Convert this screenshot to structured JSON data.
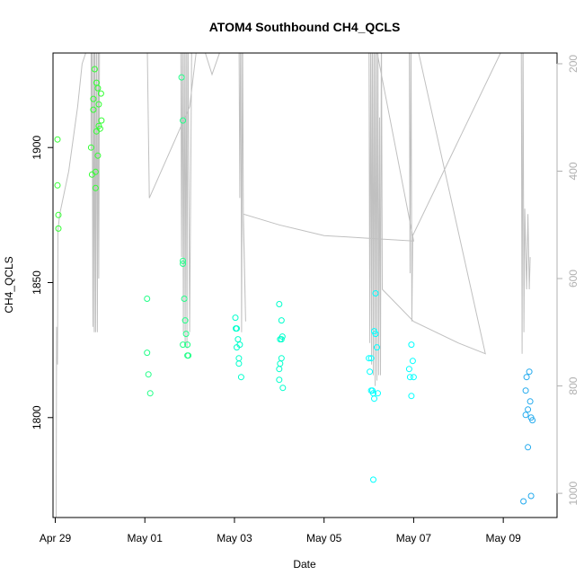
{
  "chart_data": {
    "type": "scatter",
    "title": "ATOM4 Southbound CH4_QCLS",
    "xlabel": "Date",
    "ylabel": "CH4_QCLS",
    "xlim": [
      -0.05,
      11.2
    ],
    "ylim": [
      1763,
      1935
    ],
    "x_ticks": [
      {
        "value": 0,
        "label": "Apr 29"
      },
      {
        "value": 2,
        "label": "May 01"
      },
      {
        "value": 4,
        "label": "May 03"
      },
      {
        "value": 6,
        "label": "May 05"
      },
      {
        "value": 8,
        "label": "May 07"
      },
      {
        "value": 10,
        "label": "May 09"
      }
    ],
    "y_ticks": [
      {
        "value": 1800,
        "label": "1800"
      },
      {
        "value": 1850,
        "label": "1850"
      },
      {
        "value": 1900,
        "label": "1900"
      }
    ],
    "y2lim": [
      1045,
      180
    ],
    "y2_ticks": [
      {
        "value": 200,
        "label": "200"
      },
      {
        "value": 400,
        "label": "400"
      },
      {
        "value": 600,
        "label": "600"
      },
      {
        "value": 800,
        "label": "800"
      },
      {
        "value": 1000,
        "label": "1000"
      }
    ],
    "grey_line_color": "#c0c0c0",
    "point_colors": [
      "#33ff33",
      "#22ff88",
      "#00ffcc",
      "#00ffff",
      "#22aaee"
    ],
    "pressure_trace": [
      [
        0.02,
        1045
      ],
      [
        0.03,
        690
      ],
      [
        0.05,
        760
      ],
      [
        0.06,
        510
      ],
      [
        0.1,
        480
      ],
      [
        0.3,
        400
      ],
      [
        0.5,
        280
      ],
      [
        0.6,
        200
      ],
      [
        0.8,
        150
      ],
      [
        0.8,
        360
      ],
      [
        0.82,
        100
      ],
      [
        0.84,
        690
      ],
      [
        0.86,
        100
      ],
      [
        0.87,
        700
      ],
      [
        0.88,
        100
      ],
      [
        0.9,
        700
      ],
      [
        0.92,
        100
      ],
      [
        0.94,
        700
      ],
      [
        0.96,
        100
      ],
      [
        0.97,
        600
      ],
      [
        0.99,
        100
      ],
      [
        1.1,
        60
      ],
      [
        2.05,
        140
      ],
      [
        2.1,
        450
      ],
      [
        3.0,
        280
      ],
      [
        3.2,
        140
      ],
      [
        3.25,
        100
      ],
      [
        2.8,
        100
      ],
      [
        2.82,
        560
      ],
      [
        2.84,
        100
      ],
      [
        2.86,
        700
      ],
      [
        2.88,
        100
      ],
      [
        2.9,
        720
      ],
      [
        2.92,
        100
      ],
      [
        2.94,
        730
      ],
      [
        2.96,
        100
      ],
      [
        3.0,
        700
      ],
      [
        3.05,
        100
      ],
      [
        3.5,
        220
      ],
      [
        4.0,
        100
      ],
      [
        4.5,
        50
      ],
      [
        4.1,
        100
      ],
      [
        4.12,
        450
      ],
      [
        4.14,
        100
      ],
      [
        4.16,
        700
      ],
      [
        4.18,
        100
      ],
      [
        4.2,
        500
      ],
      [
        4.25,
        680
      ],
      [
        4.2,
        480
      ],
      [
        5.0,
        500
      ],
      [
        6.0,
        520
      ],
      [
        7.0,
        525
      ],
      [
        8.0,
        530
      ],
      [
        7.0,
        100
      ],
      [
        7.02,
        720
      ],
      [
        7.04,
        100
      ],
      [
        7.06,
        760
      ],
      [
        7.08,
        100
      ],
      [
        7.1,
        780
      ],
      [
        7.12,
        100
      ],
      [
        7.14,
        800
      ],
      [
        7.16,
        100
      ],
      [
        7.18,
        790
      ],
      [
        7.2,
        100
      ],
      [
        7.22,
        780
      ],
      [
        7.24,
        300
      ],
      [
        7.26,
        780
      ],
      [
        7.28,
        100
      ],
      [
        7.3,
        620
      ],
      [
        8.0,
        680
      ],
      [
        9.0,
        720
      ],
      [
        9.6,
        740
      ],
      [
        7.9,
        100
      ],
      [
        7.92,
        590
      ],
      [
        7.94,
        100
      ],
      [
        7.96,
        680
      ],
      [
        7.98,
        520
      ],
      [
        10.4,
        100
      ],
      [
        10.42,
        740
      ],
      [
        10.44,
        100
      ],
      [
        10.46,
        700
      ],
      [
        10.48,
        470
      ],
      [
        10.52,
        620
      ],
      [
        10.55,
        480
      ],
      [
        10.58,
        620
      ],
      [
        10.6,
        560
      ]
    ],
    "series": [
      {
        "color": "#33ff33",
        "points": [
          [
            0.05,
            1903
          ],
          [
            0.05,
            1886
          ],
          [
            0.07,
            1875
          ],
          [
            0.07,
            1870
          ],
          [
            0.8,
            1900
          ],
          [
            0.82,
            1890
          ],
          [
            0.85,
            1918
          ],
          [
            0.85,
            1914
          ],
          [
            0.88,
            1929
          ],
          [
            0.9,
            1891
          ],
          [
            0.9,
            1885
          ],
          [
            0.92,
            1924
          ],
          [
            0.92,
            1906
          ],
          [
            0.95,
            1897
          ],
          [
            0.95,
            1922
          ],
          [
            0.97,
            1908
          ],
          [
            0.97,
            1916
          ],
          [
            1.0,
            1907
          ],
          [
            1.02,
            1920
          ],
          [
            1.03,
            1910
          ]
        ]
      },
      {
        "color": "#22ff88",
        "points": [
          [
            2.05,
            1844
          ],
          [
            2.05,
            1824
          ],
          [
            2.08,
            1816
          ],
          [
            2.12,
            1809
          ],
          [
            2.82,
            1926
          ],
          [
            2.85,
            1910
          ],
          [
            2.85,
            1858
          ],
          [
            2.85,
            1857
          ],
          [
            2.88,
            1844
          ],
          [
            2.85,
            1827
          ],
          [
            2.9,
            1836
          ],
          [
            2.92,
            1831
          ],
          [
            2.95,
            1823
          ],
          [
            2.95,
            1827
          ],
          [
            2.97,
            1823
          ]
        ]
      },
      {
        "color": "#00ffcc",
        "points": [
          [
            4.02,
            1837
          ],
          [
            4.03,
            1833
          ],
          [
            4.05,
            1826
          ],
          [
            4.05,
            1833
          ],
          [
            4.08,
            1829
          ],
          [
            4.1,
            1822
          ],
          [
            4.1,
            1820
          ],
          [
            4.12,
            1827
          ],
          [
            4.15,
            1815
          ],
          [
            5.0,
            1842
          ],
          [
            5.02,
            1829
          ],
          [
            5.0,
            1818
          ],
          [
            5.05,
            1836
          ],
          [
            5.05,
            1829
          ],
          [
            5.05,
            1822
          ],
          [
            5.07,
            1830
          ],
          [
            5.08,
            1811
          ],
          [
            5.0,
            1814
          ],
          [
            5.02,
            1820
          ]
        ]
      },
      {
        "color": "#00ffff",
        "points": [
          [
            7.0,
            1822
          ],
          [
            7.02,
            1817
          ],
          [
            7.05,
            1810
          ],
          [
            7.05,
            1822
          ],
          [
            7.08,
            1810
          ],
          [
            7.1,
            1809
          ],
          [
            7.12,
            1807
          ],
          [
            7.12,
            1832
          ],
          [
            7.15,
            1831
          ],
          [
            7.15,
            1846
          ],
          [
            7.18,
            1826
          ],
          [
            7.2,
            1809
          ],
          [
            7.1,
            1777
          ],
          [
            7.9,
            1818
          ],
          [
            7.92,
            1815
          ],
          [
            7.95,
            1808
          ],
          [
            7.95,
            1827
          ],
          [
            7.98,
            1821
          ],
          [
            8.0,
            1815
          ]
        ]
      },
      {
        "color": "#22aaee",
        "points": [
          [
            10.45,
            1769
          ],
          [
            10.5,
            1801
          ],
          [
            10.5,
            1810
          ],
          [
            10.52,
            1815
          ],
          [
            10.55,
            1803
          ],
          [
            10.55,
            1789
          ],
          [
            10.58,
            1817
          ],
          [
            10.6,
            1806
          ],
          [
            10.62,
            1800
          ],
          [
            10.62,
            1771
          ],
          [
            10.65,
            1799
          ]
        ]
      }
    ]
  }
}
